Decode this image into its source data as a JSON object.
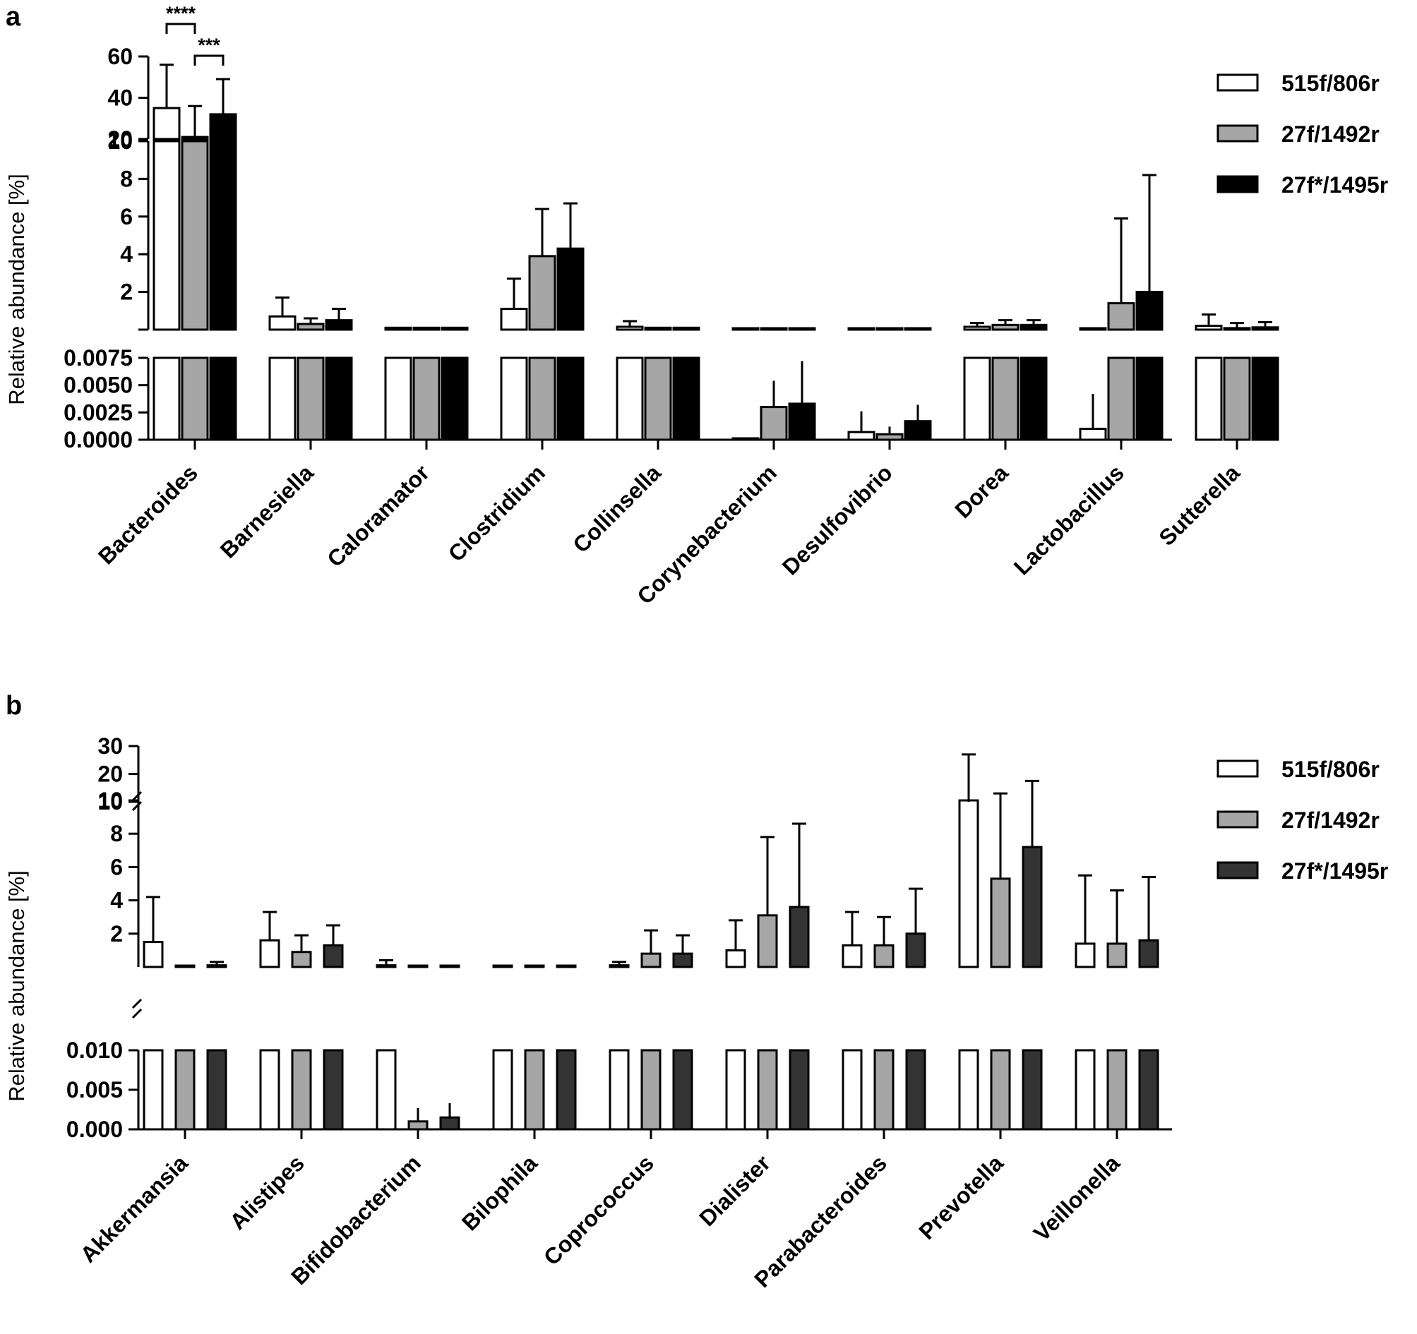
{
  "figure": {
    "panels": [
      "a",
      "b"
    ]
  },
  "chart_data": [
    {
      "panel_label": "a",
      "type": "bar",
      "ylabel": "Relative abundance [%]",
      "legend_position": "top-right",
      "series": [
        {
          "name": "515f/806r",
          "fill": "#ffffff"
        },
        {
          "name": "27f/1492r",
          "fill": "#a6a6a6"
        },
        {
          "name": "27f*/1495r",
          "fill": "#000000"
        }
      ],
      "segments": [
        {
          "range": [
            20,
            60
          ],
          "ticks": [
            "20",
            "40",
            "60"
          ],
          "tick_values": [
            20,
            40,
            60
          ]
        },
        {
          "range": [
            0,
            10
          ],
          "ticks": [
            "2",
            "4",
            "6",
            "8",
            "10"
          ],
          "tick_values": [
            2,
            4,
            6,
            8,
            10
          ]
        },
        {
          "range": [
            0,
            0.0075
          ],
          "ticks": [
            "0.0000",
            "0.0025",
            "0.0050",
            "0.0075"
          ],
          "tick_values": [
            0,
            0.0025,
            0.005,
            0.0075
          ]
        }
      ],
      "categories": [
        "Bacteroides",
        "Barnesiella",
        "Caloramator",
        "Clostridium",
        "Collinsella",
        "Corynebacterium",
        "Desulfovibrio",
        "Dorea",
        "Lactobacillus",
        "Sutterella"
      ],
      "values": [
        [
          35,
          21,
          32
        ],
        [
          0.7,
          0.3,
          0.5
        ],
        [
          0.1,
          0.1,
          0.1
        ],
        [
          1.1,
          3.9,
          4.3
        ],
        [
          0.15,
          0.1,
          0.1
        ],
        [
          0.0001,
          0.003,
          0.0033
        ],
        [
          0.0007,
          0.0005,
          0.0017
        ],
        [
          0.15,
          0.25,
          0.25
        ],
        [
          0.001,
          1.4,
          2.0
        ],
        [
          0.2,
          0.08,
          0.12
        ]
      ],
      "errors": [
        [
          56,
          36,
          49
        ],
        [
          1.7,
          0.6,
          1.1
        ],
        [
          0.1,
          0.1,
          0.1
        ],
        [
          2.7,
          6.4,
          6.7
        ],
        [
          0.45,
          0.1,
          0.1
        ],
        [
          0.0001,
          0.0054,
          0.0072
        ],
        [
          0.0026,
          0.0012,
          0.0032
        ],
        [
          0.35,
          0.5,
          0.5
        ],
        [
          0.0042,
          5.9,
          8.2
        ],
        [
          0.8,
          0.35,
          0.4
        ]
      ],
      "significance": [
        {
          "label": "****",
          "category": "Bacteroides",
          "series": [
            0,
            1
          ]
        },
        {
          "label": "***",
          "category": "Bacteroides",
          "series": [
            1,
            2
          ]
        }
      ]
    },
    {
      "panel_label": "b",
      "type": "bar",
      "ylabel": "Relative abundance [%]",
      "legend_position": "top-right",
      "series": [
        {
          "name": "515f/806r",
          "fill": "#ffffff"
        },
        {
          "name": "27f/1492r",
          "fill": "#a6a6a6"
        },
        {
          "name": "27f*/1495r",
          "fill": "#333333"
        }
      ],
      "segments": [
        {
          "range": [
            10,
            30
          ],
          "ticks": [
            "10",
            "20",
            "30"
          ],
          "tick_values": [
            10,
            20,
            30
          ]
        },
        {
          "range": [
            0,
            10
          ],
          "ticks": [
            "2",
            "4",
            "6",
            "8",
            "10"
          ],
          "tick_values": [
            2,
            4,
            6,
            8,
            10
          ]
        },
        {
          "range": [
            0,
            0.01
          ],
          "ticks": [
            "0.000",
            "0.005",
            "0.010"
          ],
          "tick_values": [
            0,
            0.005,
            0.01
          ]
        }
      ],
      "categories": [
        "Akkermansia",
        "Alistipes",
        "Bifidobacterium",
        "Bilophila",
        "Coprococcus",
        "Dialister",
        "Parabacteroides",
        "Prevotella",
        "Veillonella"
      ],
      "values": [
        [
          1.5,
          0.05,
          0.1
        ],
        [
          1.6,
          0.9,
          1.3
        ],
        [
          0.1,
          0.001,
          0.0015
        ],
        [
          0.05,
          0.05,
          0.05
        ],
        [
          0.1,
          0.8,
          0.8
        ],
        [
          1.0,
          3.1,
          3.6
        ],
        [
          1.3,
          1.3,
          2.0
        ],
        [
          10,
          5.3,
          7.2
        ],
        [
          1.4,
          1.4,
          1.6
        ]
      ],
      "errors": [
        [
          4.2,
          0.05,
          0.3
        ],
        [
          3.3,
          1.9,
          2.5
        ],
        [
          0.4,
          0.0027,
          0.0033
        ],
        [
          0.05,
          0.05,
          0.05
        ],
        [
          0.3,
          2.2,
          1.9
        ],
        [
          2.8,
          7.8,
          8.6
        ],
        [
          3.3,
          3.0,
          4.7
        ],
        [
          27,
          13,
          17.5
        ],
        [
          5.5,
          4.6,
          5.4
        ]
      ],
      "significance": []
    }
  ]
}
